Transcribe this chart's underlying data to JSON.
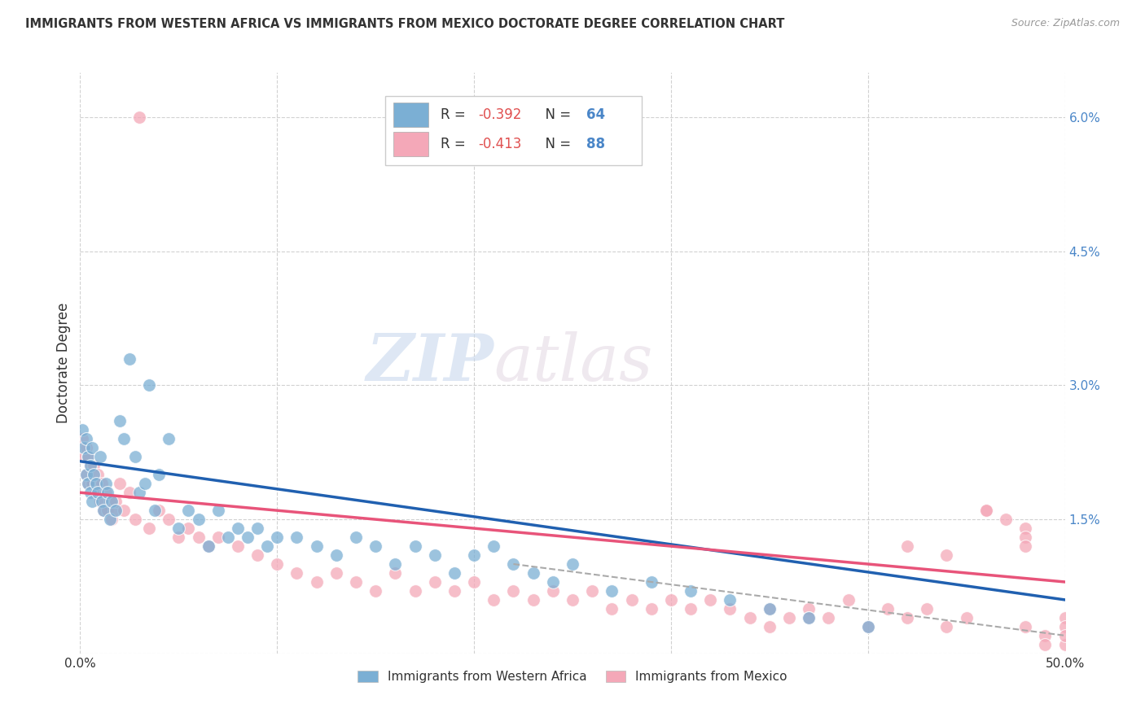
{
  "title": "IMMIGRANTS FROM WESTERN AFRICA VS IMMIGRANTS FROM MEXICO DOCTORATE DEGREE CORRELATION CHART",
  "source": "Source: ZipAtlas.com",
  "ylabel": "Doctorate Degree",
  "xlim": [
    0.0,
    0.5
  ],
  "ylim": [
    0.0,
    0.065
  ],
  "xticks": [
    0.0,
    0.1,
    0.2,
    0.3,
    0.4,
    0.5
  ],
  "yticks": [
    0.0,
    0.015,
    0.03,
    0.045,
    0.06
  ],
  "grid_color": "#cccccc",
  "background_color": "#ffffff",
  "watermark_zip": "ZIP",
  "watermark_atlas": "atlas",
  "blue_color": "#7bafd4",
  "pink_color": "#f4a8b8",
  "blue_line_color": "#2060b0",
  "pink_line_color": "#e8547a",
  "dash_color": "#aaaaaa",
  "legend_R1": "-0.392",
  "legend_N1": "64",
  "legend_R2": "-0.413",
  "legend_N2": "88",
  "legend_label1": "Immigrants from Western Africa",
  "legend_label2": "Immigrants from Mexico",
  "blue_scatter_x": [
    0.001,
    0.002,
    0.003,
    0.003,
    0.004,
    0.004,
    0.005,
    0.005,
    0.006,
    0.006,
    0.007,
    0.008,
    0.009,
    0.01,
    0.011,
    0.012,
    0.013,
    0.014,
    0.015,
    0.016,
    0.018,
    0.02,
    0.022,
    0.025,
    0.028,
    0.03,
    0.033,
    0.035,
    0.038,
    0.04,
    0.045,
    0.05,
    0.055,
    0.06,
    0.065,
    0.07,
    0.075,
    0.08,
    0.085,
    0.09,
    0.095,
    0.1,
    0.11,
    0.12,
    0.13,
    0.14,
    0.15,
    0.16,
    0.17,
    0.18,
    0.19,
    0.2,
    0.21,
    0.22,
    0.23,
    0.24,
    0.25,
    0.27,
    0.29,
    0.31,
    0.33,
    0.35,
    0.37,
    0.4
  ],
  "blue_scatter_y": [
    0.025,
    0.023,
    0.024,
    0.02,
    0.022,
    0.019,
    0.021,
    0.018,
    0.023,
    0.017,
    0.02,
    0.019,
    0.018,
    0.022,
    0.017,
    0.016,
    0.019,
    0.018,
    0.015,
    0.017,
    0.016,
    0.026,
    0.024,
    0.033,
    0.022,
    0.018,
    0.019,
    0.03,
    0.016,
    0.02,
    0.024,
    0.014,
    0.016,
    0.015,
    0.012,
    0.016,
    0.013,
    0.014,
    0.013,
    0.014,
    0.012,
    0.013,
    0.013,
    0.012,
    0.011,
    0.013,
    0.012,
    0.01,
    0.012,
    0.011,
    0.009,
    0.011,
    0.012,
    0.01,
    0.009,
    0.008,
    0.01,
    0.007,
    0.008,
    0.007,
    0.006,
    0.005,
    0.004,
    0.003
  ],
  "pink_scatter_x": [
    0.001,
    0.002,
    0.003,
    0.003,
    0.004,
    0.004,
    0.005,
    0.006,
    0.007,
    0.008,
    0.009,
    0.01,
    0.011,
    0.012,
    0.013,
    0.014,
    0.015,
    0.016,
    0.017,
    0.018,
    0.02,
    0.022,
    0.025,
    0.028,
    0.03,
    0.035,
    0.04,
    0.045,
    0.05,
    0.055,
    0.06,
    0.065,
    0.07,
    0.08,
    0.09,
    0.1,
    0.11,
    0.12,
    0.13,
    0.14,
    0.15,
    0.16,
    0.17,
    0.18,
    0.19,
    0.2,
    0.21,
    0.22,
    0.23,
    0.24,
    0.25,
    0.26,
    0.27,
    0.28,
    0.29,
    0.3,
    0.31,
    0.32,
    0.33,
    0.34,
    0.35,
    0.36,
    0.37,
    0.38,
    0.39,
    0.4,
    0.41,
    0.42,
    0.43,
    0.44,
    0.45,
    0.46,
    0.47,
    0.48,
    0.49,
    0.5,
    0.42,
    0.44,
    0.46,
    0.48,
    0.5,
    0.48,
    0.5,
    0.48,
    0.5,
    0.49,
    0.35,
    0.37
  ],
  "pink_scatter_y": [
    0.024,
    0.022,
    0.023,
    0.02,
    0.022,
    0.019,
    0.021,
    0.019,
    0.021,
    0.018,
    0.02,
    0.017,
    0.019,
    0.016,
    0.018,
    0.016,
    0.017,
    0.015,
    0.016,
    0.017,
    0.019,
    0.016,
    0.018,
    0.015,
    0.06,
    0.014,
    0.016,
    0.015,
    0.013,
    0.014,
    0.013,
    0.012,
    0.013,
    0.012,
    0.011,
    0.01,
    0.009,
    0.008,
    0.009,
    0.008,
    0.007,
    0.009,
    0.007,
    0.008,
    0.007,
    0.008,
    0.006,
    0.007,
    0.006,
    0.007,
    0.006,
    0.007,
    0.005,
    0.006,
    0.005,
    0.006,
    0.005,
    0.006,
    0.005,
    0.004,
    0.005,
    0.004,
    0.005,
    0.004,
    0.006,
    0.003,
    0.005,
    0.004,
    0.005,
    0.003,
    0.004,
    0.016,
    0.015,
    0.003,
    0.002,
    0.001,
    0.012,
    0.011,
    0.016,
    0.014,
    0.004,
    0.013,
    0.003,
    0.012,
    0.002,
    0.001,
    0.003,
    0.004
  ],
  "blue_line_x": [
    0.0,
    0.5
  ],
  "blue_line_y": [
    0.0215,
    0.006
  ],
  "pink_line_x": [
    0.0,
    0.5
  ],
  "pink_line_y": [
    0.018,
    0.008
  ],
  "dash_line_x": [
    0.22,
    0.5
  ],
  "dash_line_y": [
    0.01,
    0.002
  ]
}
